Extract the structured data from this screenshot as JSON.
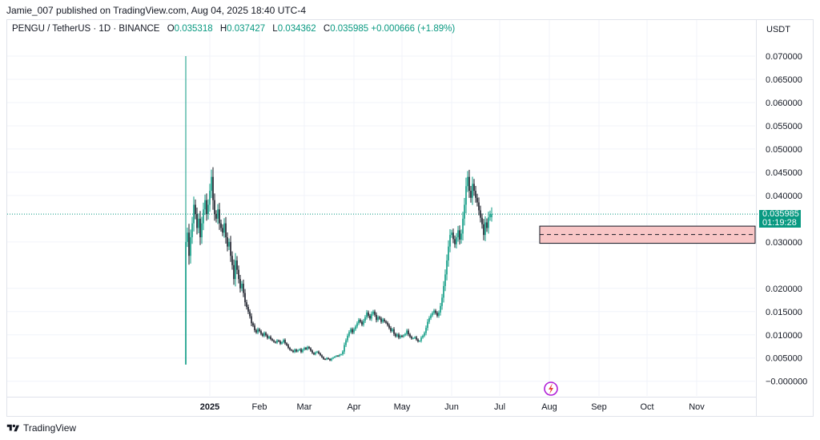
{
  "publisher": "Jamie_007 published on TradingView.com, Aug 04, 2025 18:40 UTC-4",
  "legend": {
    "symbol": "PENGU / TetherUS · 1D · BINANCE",
    "o_label": "O",
    "o_value": "0.035318",
    "h_label": "H",
    "h_value": "0.037427",
    "l_label": "L",
    "l_value": "0.034362",
    "c_label": "C",
    "c_value": "0.035985",
    "change": "+0.000666 (+1.89%)"
  },
  "currency": "USDT",
  "price_tag": {
    "price": "0.035985",
    "countdown": "01:19:28"
  },
  "footer_brand": "TradingView",
  "colors": {
    "up": "#089981",
    "down": "#131722",
    "zone_fill": "#f8c6c6",
    "zone_border": "#131722"
  },
  "chart_data": {
    "type": "candlestick",
    "symbol": "PENGU / TetherUS",
    "interval": "1D",
    "exchange": "BINANCE",
    "ylim": [
      -0.0035,
      0.0755
    ],
    "y_ticks": [
      "0.070000",
      "0.065000",
      "0.060000",
      "0.055000",
      "0.050000",
      "0.045000",
      "0.040000",
      "0.030000",
      "0.020000",
      "0.015000",
      "0.010000",
      "0.005000",
      "−0.000000"
    ],
    "x_ticks": [
      "2025",
      "Feb",
      "Mar",
      "Apr",
      "May",
      "Jun",
      "Jul",
      "Aug",
      "Sep",
      "Oct",
      "Nov"
    ],
    "first_candle_date": "2024-12-17",
    "first_candle": {
      "open": 0.0036,
      "high": 0.07,
      "low": 0.0036,
      "close": 0.03
    },
    "close_series": [
      0.032,
      0.027,
      0.031,
      0.034,
      0.038,
      0.036,
      0.033,
      0.035,
      0.031,
      0.034,
      0.037,
      0.039,
      0.036,
      0.038,
      0.041,
      0.044,
      0.039,
      0.036,
      0.035,
      0.037,
      0.034,
      0.033,
      0.032,
      0.034,
      0.031,
      0.029,
      0.03,
      0.027,
      0.025,
      0.022,
      0.026,
      0.024,
      0.022,
      0.02,
      0.021,
      0.019,
      0.017,
      0.016,
      0.015,
      0.014,
      0.0125,
      0.012,
      0.011,
      0.0105,
      0.0112,
      0.0108,
      0.0102,
      0.0098,
      0.0104,
      0.0099,
      0.0093,
      0.0096,
      0.0091,
      0.0088,
      0.0085,
      0.0083,
      0.0088,
      0.0086,
      0.0081,
      0.0084,
      0.0089,
      0.0082,
      0.0078,
      0.0072,
      0.0068,
      0.0066,
      0.0063,
      0.0068,
      0.0064,
      0.0067,
      0.0069,
      0.0063,
      0.0068,
      0.0072,
      0.0069,
      0.0074,
      0.0071,
      0.0066,
      0.0061,
      0.0058,
      0.0062,
      0.0064,
      0.006,
      0.0056,
      0.0052,
      0.0048,
      0.0047,
      0.005,
      0.0048,
      0.0045,
      0.0049,
      0.0051,
      0.0053,
      0.0055,
      0.0054,
      0.0057,
      0.0058,
      0.0064,
      0.0078,
      0.0088,
      0.0098,
      0.0106,
      0.0112,
      0.0105,
      0.0112,
      0.0118,
      0.0125,
      0.0132,
      0.0128,
      0.0122,
      0.013,
      0.0138,
      0.0148,
      0.0141,
      0.0135,
      0.0145,
      0.015,
      0.0143,
      0.0132,
      0.0138,
      0.0135,
      0.0128,
      0.0133,
      0.0129,
      0.0126,
      0.0121,
      0.0115,
      0.0108,
      0.0112,
      0.0102,
      0.0097,
      0.0101,
      0.0094,
      0.0098,
      0.0096,
      0.0099,
      0.0102,
      0.0109,
      0.0101,
      0.0096,
      0.0092,
      0.0093,
      0.0095,
      0.009,
      0.0086,
      0.0087,
      0.0094,
      0.0098,
      0.0104,
      0.0115,
      0.0128,
      0.0136,
      0.0142,
      0.0147,
      0.0152,
      0.0147,
      0.0141,
      0.0148,
      0.0162,
      0.018,
      0.0205,
      0.023,
      0.026,
      0.029,
      0.0315,
      0.032,
      0.0306,
      0.0295,
      0.031,
      0.0325,
      0.0305,
      0.0318,
      0.035,
      0.038,
      0.042,
      0.044,
      0.041,
      0.0395,
      0.0425,
      0.041,
      0.0395,
      0.0385,
      0.0368,
      0.0352,
      0.0338,
      0.0315,
      0.0342,
      0.033,
      0.0353,
      0.036
    ],
    "last_candle": {
      "open": 0.035318,
      "high": 0.037427,
      "low": 0.034362,
      "close": 0.035985
    },
    "last_price": 0.035985,
    "zone": {
      "top": 0.0334,
      "bottom": 0.0297,
      "mid": 0.0316,
      "start_date": "2025-07-26"
    }
  }
}
